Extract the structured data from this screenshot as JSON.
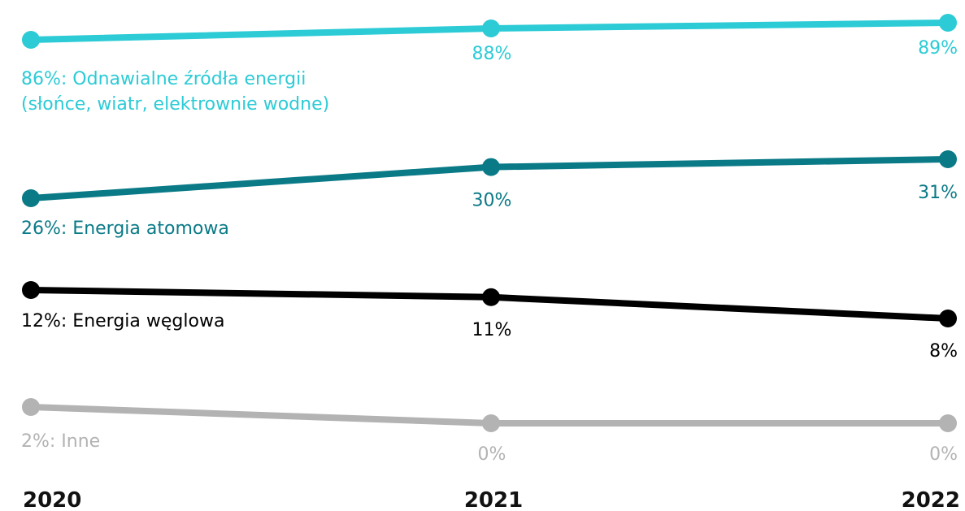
{
  "chart_data": {
    "type": "line",
    "x": [
      "2020",
      "2021",
      "2022"
    ],
    "series": [
      {
        "name": "Odnawialne źródła energii (słońce, wiatr, elektrownie wodne)",
        "name_lines": [
          "86%: Odnawialne źródła energii",
          "(słońce, wiatr, elektrownie wodne)"
        ],
        "values": [
          86,
          88,
          89
        ],
        "labels": [
          "",
          "88%",
          "89%"
        ],
        "color": "#2ccbd6"
      },
      {
        "name": "Energia atomowa",
        "name_lines": [
          "26%: Energia atomowa"
        ],
        "values": [
          26,
          30,
          31
        ],
        "labels": [
          "",
          "30%",
          "31%"
        ],
        "color": "#0a7a87"
      },
      {
        "name": "Energia węglowa",
        "name_lines": [
          "12%: Energia węglowa"
        ],
        "values": [
          12,
          11,
          8
        ],
        "labels": [
          "",
          "11%",
          "8%"
        ],
        "color": "#000000"
      },
      {
        "name": "Inne",
        "name_lines": [
          "2%: Inne"
        ],
        "values": [
          2,
          0,
          0
        ],
        "labels": [
          "",
          "0%",
          "0%"
        ],
        "color": "#b3b3b3"
      }
    ],
    "grid": false,
    "legend": "inline-left"
  }
}
